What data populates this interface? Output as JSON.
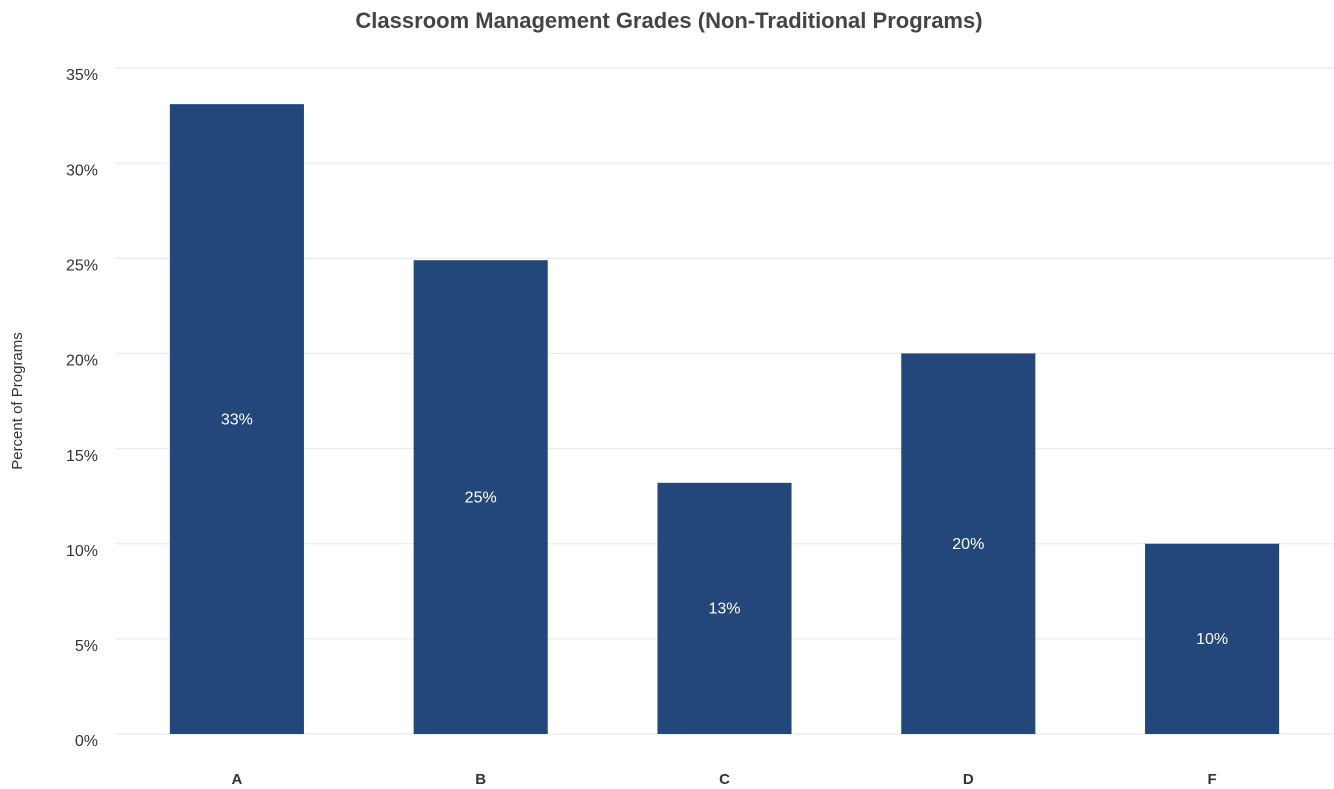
{
  "chart_data": {
    "type": "bar",
    "title": "Classroom Management Grades (Non-Traditional Programs)",
    "y_label": "Percent of Programs",
    "categories": [
      "A",
      "B",
      "C",
      "D",
      "F"
    ],
    "values": [
      33.1,
      24.9,
      13.2,
      20,
      10
    ],
    "value_labels": [
      "33%",
      "25%",
      "13%",
      "20%",
      "10%"
    ],
    "color": "#23477a",
    "ylim": [
      0,
      35
    ],
    "yticks": [
      {
        "value": 0,
        "label": "0%"
      },
      {
        "value": 5,
        "label": "5%"
      },
      {
        "value": 10,
        "label": "10%"
      },
      {
        "value": 15,
        "label": "15%"
      },
      {
        "value": 20,
        "label": "20%"
      },
      {
        "value": 25,
        "label": "25%"
      },
      {
        "value": 30,
        "label": "30%"
      },
      {
        "value": 35,
        "label": "35%"
      }
    ],
    "grid": true
  }
}
